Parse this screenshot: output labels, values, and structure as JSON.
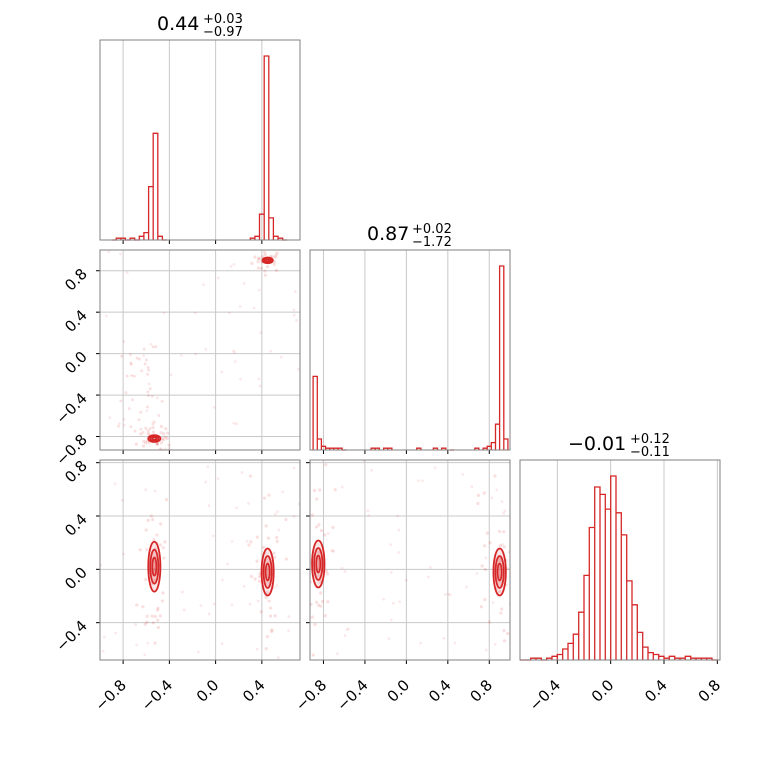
{
  "colors": {
    "line": "#d62728",
    "scatter": "#d62728",
    "grid": "#c8c8c8",
    "frame": "#808080"
  },
  "chart_data": {
    "type": "corner",
    "title": "",
    "params": [
      {
        "title_value": "0.44",
        "title_plus": "+0.03",
        "title_minus": "−0.97",
        "range": [
          -1.0,
          0.73
        ]
      },
      {
        "title_value": "0.87",
        "title_plus": "+0.02",
        "title_minus": "−1.72",
        "range": [
          -0.93,
          1.0
        ]
      },
      {
        "title_value": "−0.01",
        "title_plus": "+0.12",
        "title_minus": "−0.11",
        "range": [
          -0.68,
          0.82
        ]
      }
    ],
    "ticks": {
      "p0": [
        -0.8,
        -0.4,
        0.0,
        0.4
      ],
      "p0_labels": [
        "−0.8",
        "−0.4",
        "0.0",
        "0.4"
      ],
      "p1": [
        -0.8,
        -0.4,
        0.0,
        0.4,
        0.8
      ],
      "p1_labels": [
        "−0.8",
        "−0.4",
        "0.0",
        "0.4",
        "0.8"
      ],
      "p2": [
        -0.4,
        0.0,
        0.4,
        0.8
      ],
      "p2_labels": [
        "−0.4",
        "0.0",
        "0.4",
        "0.8"
      ]
    },
    "hist_p0": [
      {
        "x": -0.88,
        "y": 0.0
      },
      {
        "x": -0.84,
        "y": 0.01
      },
      {
        "x": -0.8,
        "y": 0.01
      },
      {
        "x": -0.76,
        "y": 0.0
      },
      {
        "x": -0.72,
        "y": 0.01
      },
      {
        "x": -0.68,
        "y": 0.0
      },
      {
        "x": -0.64,
        "y": 0.02
      },
      {
        "x": -0.6,
        "y": 0.04
      },
      {
        "x": -0.56,
        "y": 0.29
      },
      {
        "x": -0.52,
        "y": 0.58
      },
      {
        "x": -0.48,
        "y": 0.02
      },
      {
        "x": -0.44,
        "y": 0.0
      },
      {
        "x": 0.32,
        "y": 0.01
      },
      {
        "x": 0.36,
        "y": 0.02
      },
      {
        "x": 0.4,
        "y": 0.14
      },
      {
        "x": 0.44,
        "y": 1.0
      },
      {
        "x": 0.48,
        "y": 0.12
      },
      {
        "x": 0.52,
        "y": 0.02
      },
      {
        "x": 0.56,
        "y": 0.01
      },
      {
        "x": 0.6,
        "y": 0.0
      }
    ],
    "hist_p1": [
      {
        "x": -0.88,
        "y": 0.4
      },
      {
        "x": -0.84,
        "y": 0.06
      },
      {
        "x": -0.8,
        "y": 0.02
      },
      {
        "x": -0.76,
        "y": 0.01
      },
      {
        "x": -0.72,
        "y": 0.01
      },
      {
        "x": -0.68,
        "y": 0.01
      },
      {
        "x": -0.64,
        "y": 0.01
      },
      {
        "x": -0.6,
        "y": 0.0
      },
      {
        "x": -0.32,
        "y": 0.01
      },
      {
        "x": -0.28,
        "y": 0.01
      },
      {
        "x": -0.2,
        "y": 0.01
      },
      {
        "x": -0.16,
        "y": 0.01
      },
      {
        "x": 0.12,
        "y": 0.01
      },
      {
        "x": 0.28,
        "y": 0.01
      },
      {
        "x": 0.36,
        "y": 0.01
      },
      {
        "x": 0.44,
        "y": 0.0
      },
      {
        "x": 0.68,
        "y": 0.01
      },
      {
        "x": 0.76,
        "y": 0.01
      },
      {
        "x": 0.8,
        "y": 0.02
      },
      {
        "x": 0.84,
        "y": 0.04
      },
      {
        "x": 0.88,
        "y": 0.14
      },
      {
        "x": 0.92,
        "y": 1.0
      },
      {
        "x": 0.96,
        "y": 0.06
      }
    ],
    "hist_p2": [
      {
        "x": -0.66,
        "y": 0.0
      },
      {
        "x": -0.62,
        "y": 0.0
      },
      {
        "x": -0.58,
        "y": 0.01
      },
      {
        "x": -0.54,
        "y": 0.01
      },
      {
        "x": -0.5,
        "y": 0.0
      },
      {
        "x": -0.46,
        "y": 0.01
      },
      {
        "x": -0.42,
        "y": 0.02
      },
      {
        "x": -0.38,
        "y": 0.03
      },
      {
        "x": -0.34,
        "y": 0.06
      },
      {
        "x": -0.3,
        "y": 0.09
      },
      {
        "x": -0.26,
        "y": 0.14
      },
      {
        "x": -0.22,
        "y": 0.26
      },
      {
        "x": -0.18,
        "y": 0.46
      },
      {
        "x": -0.14,
        "y": 0.72
      },
      {
        "x": -0.1,
        "y": 0.94
      },
      {
        "x": -0.06,
        "y": 0.9
      },
      {
        "x": -0.02,
        "y": 0.82
      },
      {
        "x": 0.02,
        "y": 1.0
      },
      {
        "x": 0.06,
        "y": 0.8
      },
      {
        "x": 0.1,
        "y": 0.68
      },
      {
        "x": 0.14,
        "y": 0.43
      },
      {
        "x": 0.18,
        "y": 0.3
      },
      {
        "x": 0.22,
        "y": 0.15
      },
      {
        "x": 0.26,
        "y": 0.07
      },
      {
        "x": 0.3,
        "y": 0.04
      },
      {
        "x": 0.34,
        "y": 0.03
      },
      {
        "x": 0.38,
        "y": 0.02
      },
      {
        "x": 0.42,
        "y": 0.01
      },
      {
        "x": 0.46,
        "y": 0.02
      },
      {
        "x": 0.5,
        "y": 0.01
      },
      {
        "x": 0.54,
        "y": 0.01
      },
      {
        "x": 0.58,
        "y": 0.02
      },
      {
        "x": 0.62,
        "y": 0.01
      },
      {
        "x": 0.66,
        "y": 0.01
      },
      {
        "x": 0.7,
        "y": 0.01
      },
      {
        "x": 0.74,
        "y": 0.01
      },
      {
        "x": 0.78,
        "y": 0.0
      }
    ],
    "modes_p0p1": [
      {
        "x": 0.45,
        "y": 0.9,
        "rx": 0.03,
        "ry": 0.025
      },
      {
        "x": -0.53,
        "y": -0.82,
        "rx": 0.035,
        "ry": 0.03
      }
    ],
    "modes_p0p2": [
      {
        "x": -0.53,
        "y": 0.02,
        "rx": 0.035,
        "ry": 0.17
      },
      {
        "x": 0.45,
        "y": -0.02,
        "rx": 0.035,
        "ry": 0.16
      }
    ],
    "modes_p1p2": [
      {
        "x": -0.85,
        "y": 0.04,
        "rx": 0.04,
        "ry": 0.16
      },
      {
        "x": 0.9,
        "y": -0.02,
        "rx": 0.04,
        "ry": 0.16
      }
    ]
  }
}
